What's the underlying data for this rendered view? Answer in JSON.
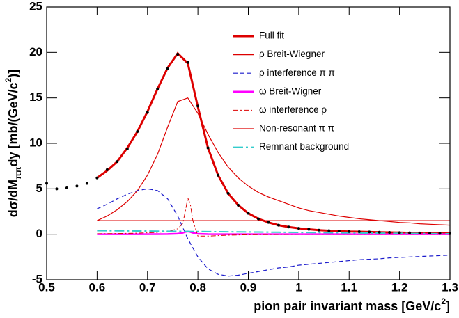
{
  "chart_data": {
    "type": "line",
    "xlabel": [
      "pion pair invariant mass [GeV/c",
      "2",
      "]"
    ],
    "ylabel": [
      "dσ/dM",
      "ππ",
      "dy [mb/(GeV/c",
      "2",
      ")]"
    ],
    "xlim": [
      0.5,
      1.3
    ],
    "ylim": [
      -5,
      25
    ],
    "xticks": [
      0.5,
      0.6,
      0.7,
      0.8,
      0.9,
      1,
      1.1,
      1.2,
      1.3
    ],
    "yticks": [
      -5,
      0,
      5,
      10,
      15,
      20,
      25
    ],
    "legend_position": "upper right",
    "x": [
      0.5,
      0.52,
      0.54,
      0.56,
      0.58,
      0.6,
      0.62,
      0.64,
      0.66,
      0.68,
      0.7,
      0.72,
      0.74,
      0.76,
      0.78,
      0.8,
      0.82,
      0.84,
      0.86,
      0.88,
      0.9,
      0.92,
      0.94,
      0.96,
      0.98,
      1,
      1.02,
      1.04,
      1.06,
      1.08,
      1.1,
      1.12,
      1.14,
      1.16,
      1.18,
      1.2,
      1.22,
      1.24,
      1.26,
      1.28,
      1.3
    ],
    "data_points": {
      "color": "#000000",
      "values": [
        5.6,
        5.0,
        5.1,
        5.3,
        5.6,
        6.2,
        7.1,
        8.0,
        9.4,
        11.3,
        13.4,
        16.0,
        18.2,
        19.8,
        18.9,
        14.1,
        9.5,
        6.5,
        4.5,
        3.2,
        2.3,
        1.7,
        1.3,
        1.0,
        0.8,
        0.65,
        0.55,
        0.45,
        0.4,
        0.35,
        0.3,
        0.28,
        0.25,
        0.22,
        0.2,
        0.18,
        0.16,
        0.14,
        0.12,
        0.1,
        0.08
      ]
    },
    "series": [
      {
        "name": "Full fit",
        "color": "#dd0000",
        "width": 3,
        "dash": "none",
        "values": [
          null,
          null,
          null,
          null,
          null,
          6.2,
          7.0,
          8.0,
          9.5,
          11.3,
          13.5,
          16.0,
          18.3,
          19.9,
          18.8,
          14.0,
          9.5,
          6.5,
          4.5,
          3.2,
          2.3,
          1.7,
          1.3,
          1.0,
          0.8,
          0.65,
          0.55,
          0.45,
          0.4,
          0.35,
          0.3,
          0.28,
          0.25,
          0.22,
          0.2,
          0.18,
          0.16,
          0.14,
          0.12,
          0.1,
          0.08
        ]
      },
      {
        "name": "ρ Breit-Wiegner",
        "color": "#dd0000",
        "width": 1.2,
        "dash": "none",
        "values": [
          null,
          null,
          null,
          null,
          null,
          1.5,
          2.0,
          2.7,
          3.6,
          4.8,
          6.5,
          8.8,
          11.8,
          14.6,
          15.0,
          13.3,
          11.0,
          9.0,
          7.4,
          6.2,
          5.3,
          4.6,
          4.1,
          3.7,
          3.3,
          2.9,
          2.6,
          2.4,
          2.2,
          2.0,
          1.85,
          1.7,
          1.6,
          1.5,
          1.4,
          1.3,
          1.25,
          1.15,
          1.1,
          1.05,
          1.0
        ]
      },
      {
        "name": "ρ interference π π",
        "color": "#1a1acc",
        "width": 1.2,
        "dash": "6,4",
        "values": [
          null,
          null,
          null,
          null,
          null,
          2.8,
          3.3,
          3.9,
          4.4,
          4.8,
          5.0,
          4.8,
          3.9,
          2.0,
          -0.5,
          -2.5,
          -3.8,
          -4.4,
          -4.6,
          -4.5,
          -4.3,
          -4.1,
          -3.9,
          -3.7,
          -3.6,
          -3.4,
          -3.3,
          -3.2,
          -3.1,
          -3.0,
          -2.9,
          -2.8,
          -2.75,
          -2.7,
          -2.6,
          -2.55,
          -2.5,
          -2.45,
          -2.4,
          -2.35,
          -2.3
        ]
      },
      {
        "name": "ω Breit-Wigner",
        "color": "#ff00ff",
        "width": 2.5,
        "dash": "none",
        "x": [
          0.6,
          0.64,
          0.68,
          0.72,
          0.74,
          0.76,
          0.77,
          0.775,
          0.78,
          0.785,
          0.79,
          0.8,
          0.82,
          0.86,
          0.9,
          1,
          1.1,
          1.2,
          1.3
        ],
        "values": [
          0,
          0,
          0,
          0.01,
          0.02,
          0.06,
          0.15,
          0.25,
          0.3,
          0.25,
          0.15,
          0.05,
          0.01,
          0,
          0,
          0,
          0,
          0,
          0
        ]
      },
      {
        "name": "ω interference ρ",
        "color": "#dd0000",
        "width": 1,
        "dash": "7,3,2,3",
        "x": [
          0.6,
          0.64,
          0.68,
          0.72,
          0.74,
          0.76,
          0.77,
          0.775,
          0.78,
          0.785,
          0.79,
          0.8,
          0.82,
          0.86,
          0.9,
          1,
          1.1,
          1.2,
          1.3
        ],
        "values": [
          0.05,
          0.08,
          0.12,
          0.2,
          0.3,
          0.6,
          1.2,
          2.5,
          4.0,
          3.3,
          1.5,
          -0.2,
          -0.2,
          -0.1,
          -0.05,
          0,
          0,
          0,
          0
        ]
      },
      {
        "name": "Non-resonant π π",
        "color": "#dd0000",
        "width": 1.2,
        "dash": "none",
        "x": [
          0.6,
          1.3
        ],
        "values": [
          1.5,
          1.5
        ]
      },
      {
        "name": "Remnant background",
        "color": "#33cccc",
        "width": 2,
        "dash": "14,4,3,4",
        "values": [
          null,
          null,
          null,
          null,
          null,
          0.4,
          0.39,
          0.38,
          0.37,
          0.36,
          0.35,
          0.34,
          0.33,
          0.32,
          0.31,
          0.3,
          0.29,
          0.28,
          0.27,
          0.26,
          0.25,
          0.24,
          0.23,
          0.22,
          0.21,
          0.2,
          0.19,
          0.18,
          0.17,
          0.16,
          0.15,
          0.14,
          0.13,
          0.12,
          0.11,
          0.1,
          0.09,
          0.08,
          0.07,
          0.06,
          0.05
        ]
      }
    ]
  }
}
